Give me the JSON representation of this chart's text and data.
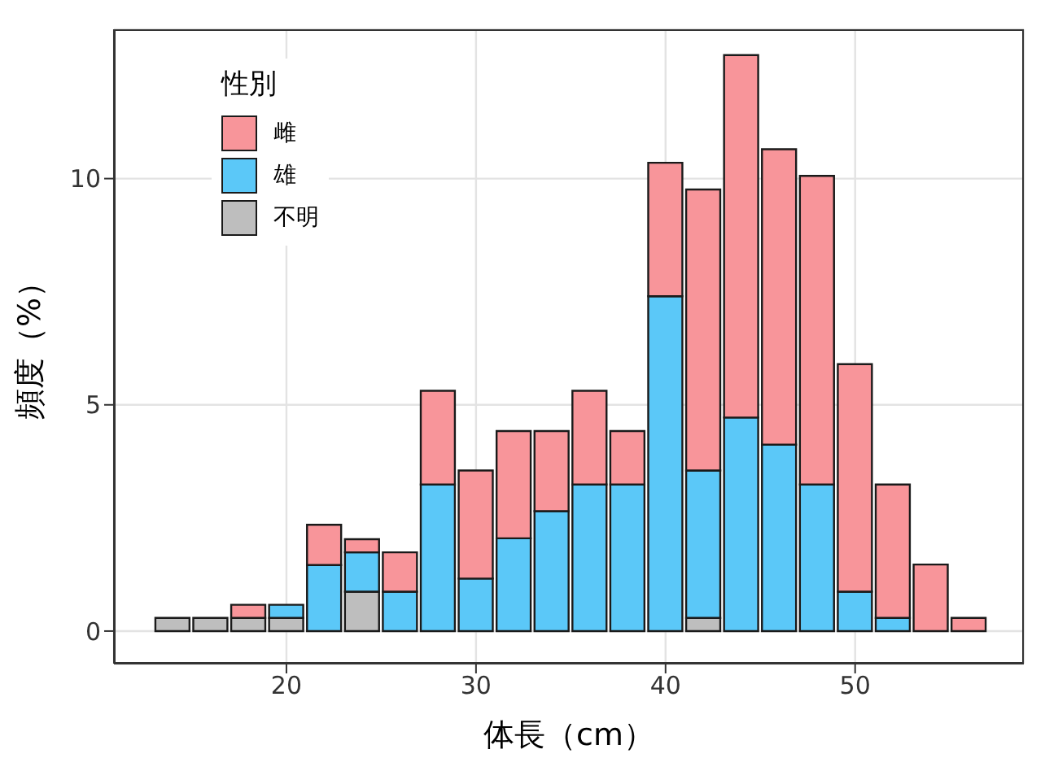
{
  "chart_data": {
    "type": "bar",
    "xlabel": "体長（cm）",
    "ylabel": "頻度（%）",
    "legend_title": "性別",
    "x": [
      14,
      16,
      18,
      20,
      22,
      24,
      26,
      28,
      30,
      32,
      34,
      36,
      38,
      40,
      42,
      44,
      46,
      48,
      50,
      52,
      54,
      56
    ],
    "stacked": true,
    "series": [
      {
        "name": "不明",
        "color": "#bebebe",
        "values": [
          0.29,
          0.29,
          0.29,
          0.29,
          null,
          0.87,
          null,
          null,
          null,
          null,
          null,
          null,
          null,
          null,
          0.29,
          null,
          null,
          null,
          null,
          null,
          null,
          null
        ]
      },
      {
        "name": "雄",
        "color": "#5bc8f8",
        "values": [
          null,
          null,
          null,
          0.29,
          1.46,
          0.87,
          0.87,
          3.24,
          1.16,
          2.05,
          2.65,
          3.24,
          3.24,
          7.4,
          3.26,
          4.72,
          4.12,
          3.24,
          0.87,
          0.29,
          null,
          null
        ]
      },
      {
        "name": "雌",
        "color": "#f8959a",
        "values": [
          null,
          null,
          0.29,
          null,
          0.89,
          0.29,
          0.87,
          2.07,
          2.39,
          2.37,
          1.77,
          2.07,
          1.18,
          2.95,
          6.21,
          8.01,
          6.53,
          6.82,
          5.03,
          2.95,
          1.47,
          0.29
        ]
      }
    ],
    "xlim": [
      10.9,
      58.9
    ],
    "xticks": [
      20,
      30,
      40,
      50
    ],
    "ylim": [
      -0.72,
      13.3
    ],
    "yticks": [
      0,
      5,
      10
    ],
    "grid": true,
    "legend": "top left"
  }
}
